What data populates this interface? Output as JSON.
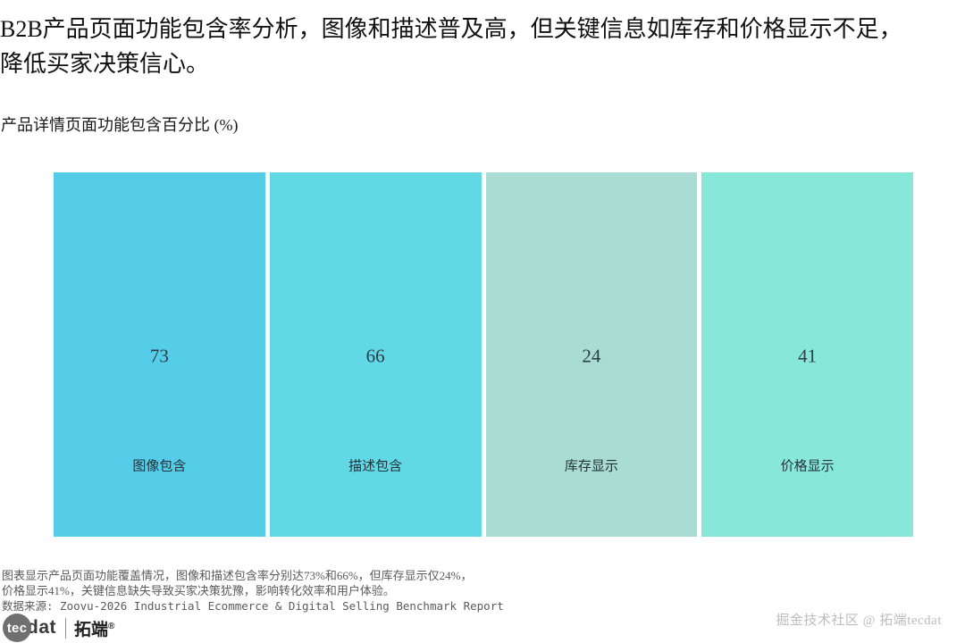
{
  "page": {
    "title": "B2B产品页面功能包含率分析，图像和描述普及高，但关键信息如库存和价格显示不足，降低买家决策信心。",
    "watermark": "掘金技术社区 @ 拓端tecdat"
  },
  "chart_data": {
    "type": "heatmap",
    "variant": "single-row equal-size tile chart (treemap style), value shown as number in tile center, category label below",
    "title": "产品详情页面功能包含百分比 (%)",
    "categories": [
      "图像包含",
      "描述包含",
      "库存显示",
      "价格显示"
    ],
    "values": [
      73,
      66,
      24,
      41
    ],
    "unit": "%",
    "value_range": [
      0,
      100
    ],
    "colors": [
      "#55CDE8",
      "#61D8E5",
      "#A9DDD3",
      "#87E8DA"
    ],
    "value_text_color": "#2e3d46",
    "label_text_color": "#24323a",
    "legend": "none",
    "grid": false,
    "axes": "none"
  },
  "footnotes": {
    "line1": "图表显示产品页面功能覆盖情况，图像和描述包含率分别达73%和66%，但库存显示仅24%，",
    "line2": "价格显示41%，关键信息缺失导致买家决策犹豫，影响转化效率和用户体验。",
    "source": "数据来源: Zoovu-2026 Industrial Ecommerce & Digital Selling Benchmark Report"
  },
  "logo": {
    "circle_text": "tec",
    "suffix_text": "dat",
    "brand_cn": "拓端",
    "registered_mark": "®"
  }
}
